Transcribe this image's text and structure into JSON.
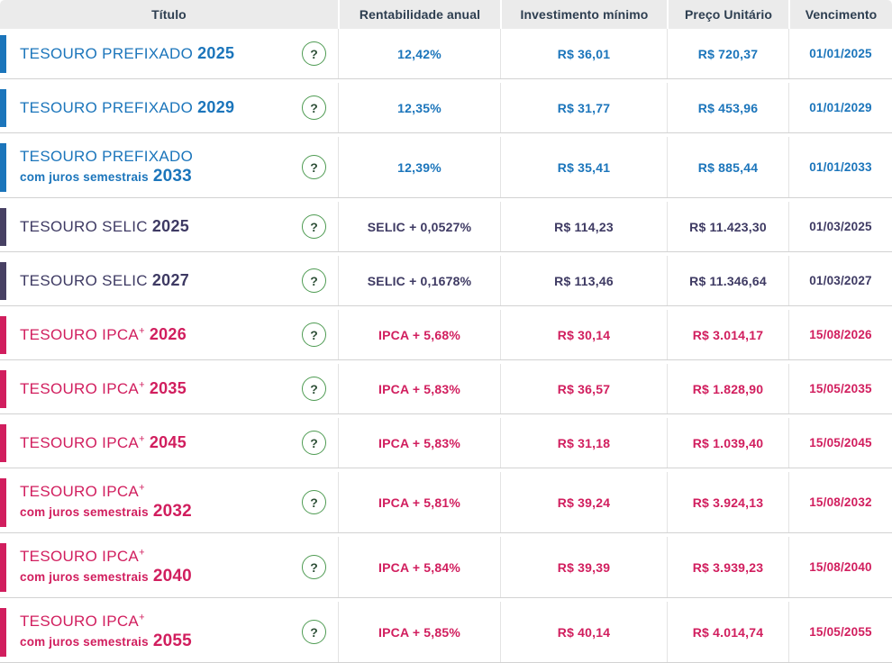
{
  "header": {
    "columns": [
      {
        "label": "Título"
      },
      {
        "label": "Rentabilidade anual"
      },
      {
        "label": "Investimento mínimo"
      },
      {
        "label": "Preço Unitário"
      },
      {
        "label": "Vencimento"
      }
    ]
  },
  "help_icon": {
    "glyph": "?"
  },
  "colors": {
    "prefixado": {
      "bar": "#1B75BB",
      "text": "#1B75BB"
    },
    "selic": {
      "bar": "#474063",
      "text": "#3E3A63"
    },
    "ipca": {
      "bar": "#D11E5E",
      "text": "#D11E5E"
    },
    "header_bg": "#EBEBEB",
    "header_text": "#2D3E50",
    "help_border": "#4E9B52",
    "help_glyph": "#2F5038",
    "row_divider": "#D2D2D2",
    "column_divider": "#E3E3E3"
  },
  "rows": [
    {
      "family": "prefixado",
      "title": "TESOURO PREFIXADO",
      "superscript": "",
      "sub_label": "",
      "year": "2025",
      "rate": "12,42%",
      "min_investment": "R$ 36,01",
      "unit_price": "R$ 720,37",
      "maturity": "01/01/2025"
    },
    {
      "family": "prefixado",
      "title": "TESOURO PREFIXADO",
      "superscript": "",
      "sub_label": "",
      "year": "2029",
      "rate": "12,35%",
      "min_investment": "R$ 31,77",
      "unit_price": "R$ 453,96",
      "maturity": "01/01/2029"
    },
    {
      "family": "prefixado",
      "title": "TESOURO PREFIXADO",
      "superscript": "",
      "sub_label": "com juros semestrais",
      "year": "2033",
      "rate": "12,39%",
      "min_investment": "R$ 35,41",
      "unit_price": "R$ 885,44",
      "maturity": "01/01/2033"
    },
    {
      "family": "selic",
      "title": "TESOURO SELIC",
      "superscript": "",
      "sub_label": "",
      "year": "2025",
      "rate": "SELIC + 0,0527%",
      "min_investment": "R$ 114,23",
      "unit_price": "R$ 11.423,30",
      "maturity": "01/03/2025"
    },
    {
      "family": "selic",
      "title": "TESOURO SELIC",
      "superscript": "",
      "sub_label": "",
      "year": "2027",
      "rate": "SELIC + 0,1678%",
      "min_investment": "R$ 113,46",
      "unit_price": "R$ 11.346,64",
      "maturity": "01/03/2027"
    },
    {
      "family": "ipca",
      "title": "TESOURO IPCA",
      "superscript": "+",
      "sub_label": "",
      "year": "2026",
      "rate": "IPCA + 5,68%",
      "min_investment": "R$ 30,14",
      "unit_price": "R$ 3.014,17",
      "maturity": "15/08/2026"
    },
    {
      "family": "ipca",
      "title": "TESOURO IPCA",
      "superscript": "+",
      "sub_label": "",
      "year": "2035",
      "rate": "IPCA + 5,83%",
      "min_investment": "R$ 36,57",
      "unit_price": "R$ 1.828,90",
      "maturity": "15/05/2035"
    },
    {
      "family": "ipca",
      "title": "TESOURO IPCA",
      "superscript": "+",
      "sub_label": "",
      "year": "2045",
      "rate": "IPCA + 5,83%",
      "min_investment": "R$ 31,18",
      "unit_price": "R$ 1.039,40",
      "maturity": "15/05/2045"
    },
    {
      "family": "ipca",
      "title": "TESOURO IPCA",
      "superscript": "+",
      "sub_label": "com juros semestrais",
      "year": "2032",
      "rate": "IPCA + 5,81%",
      "min_investment": "R$ 39,24",
      "unit_price": "R$ 3.924,13",
      "maturity": "15/08/2032"
    },
    {
      "family": "ipca",
      "title": "TESOURO IPCA",
      "superscript": "+",
      "sub_label": "com juros semestrais",
      "year": "2040",
      "rate": "IPCA + 5,84%",
      "min_investment": "R$ 39,39",
      "unit_price": "R$ 3.939,23",
      "maturity": "15/08/2040"
    },
    {
      "family": "ipca",
      "title": "TESOURO IPCA",
      "superscript": "+",
      "sub_label": "com juros semestrais",
      "year": "2055",
      "rate": "IPCA + 5,85%",
      "min_investment": "R$ 40,14",
      "unit_price": "R$ 4.014,74",
      "maturity": "15/05/2055"
    }
  ]
}
